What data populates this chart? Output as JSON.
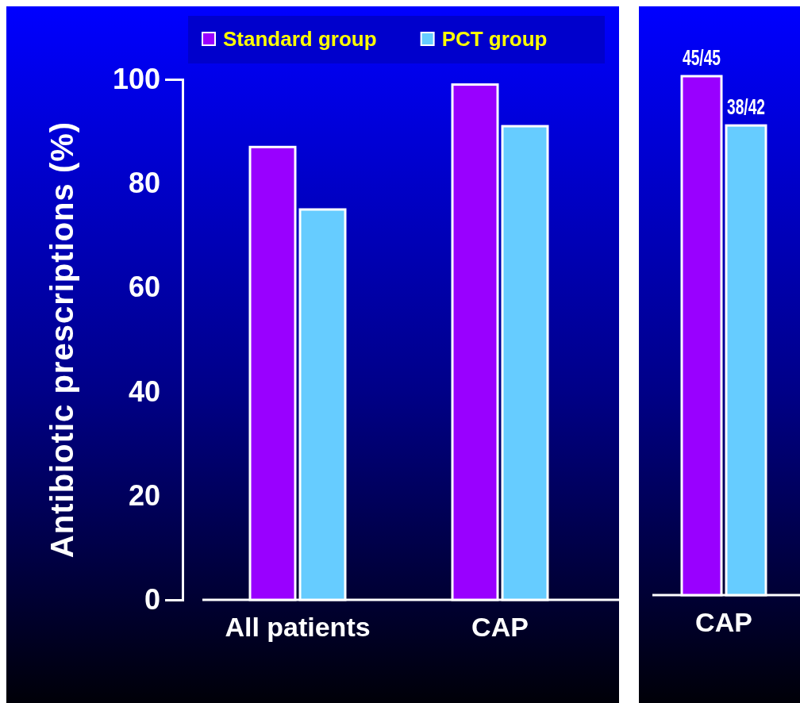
{
  "chart_data": [
    {
      "type": "bar",
      "ylabel": "Antibiotic prescriptions (%)",
      "categories": [
        "All patients",
        "CAP"
      ],
      "series": [
        {
          "name": "Standard group",
          "color": "#9900ff",
          "values": [
            87,
            99
          ]
        },
        {
          "name": "PCT group",
          "color": "#66ccff",
          "values": [
            75,
            91
          ]
        }
      ],
      "ylim": [
        0,
        100
      ],
      "yticks": [
        0,
        20,
        40,
        60,
        80,
        100
      ],
      "legend": "top",
      "grid": false
    },
    {
      "type": "bar",
      "ylim": [
        0,
        100
      ],
      "categories": [
        "CAP"
      ],
      "series": [
        {
          "color": "#9900ff",
          "values": [
            100
          ],
          "value_labels": [
            "45/45"
          ]
        },
        {
          "color": "#66ccff",
          "values": [
            90.5
          ],
          "value_labels": [
            "38/42"
          ]
        }
      ]
    }
  ]
}
